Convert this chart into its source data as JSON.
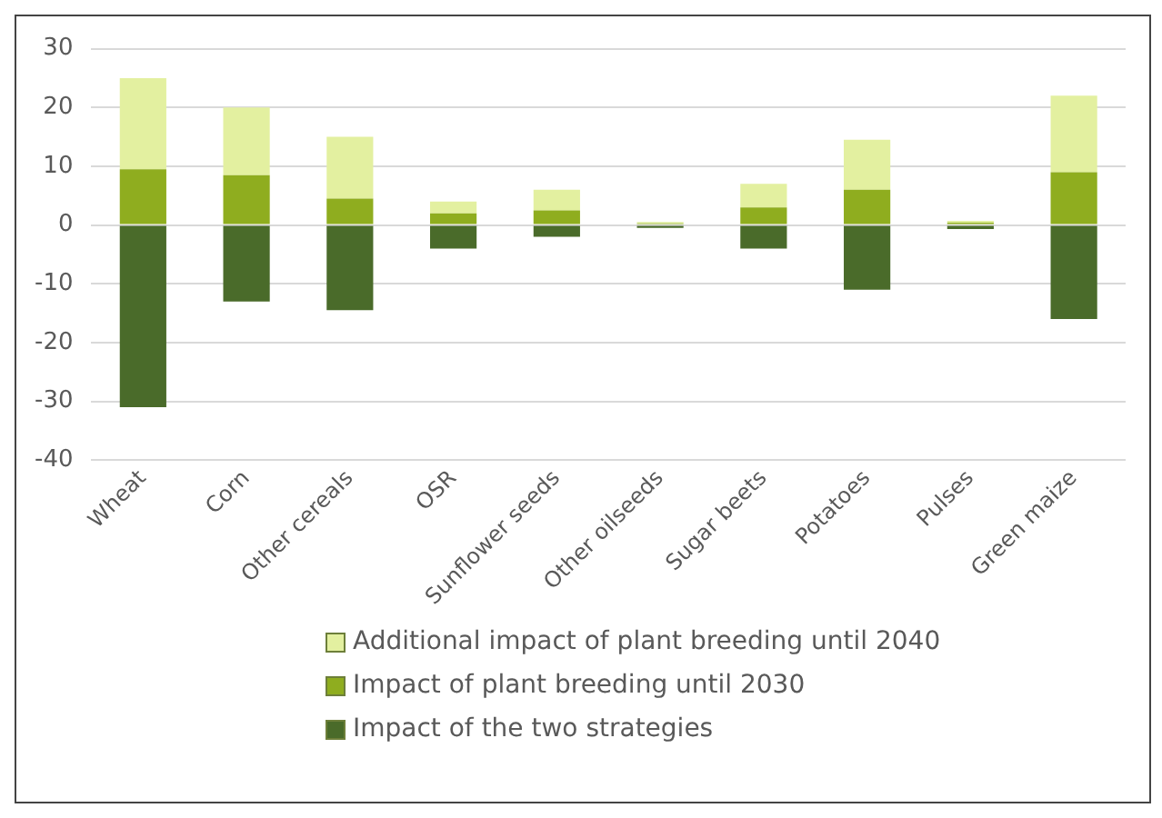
{
  "chart_data": {
    "type": "bar",
    "stacked": true,
    "categories": [
      "Wheat",
      "Corn",
      "Other cereals",
      "OSR",
      "Sunflower seeds",
      "Other oilseeds",
      "Sugar beets",
      "Potatoes",
      "Pulses",
      "Green maize"
    ],
    "series": [
      {
        "name": "Impact of the two strategies",
        "color": "#4a6b2a",
        "values": [
          -31,
          -13,
          -14.5,
          -4,
          -2,
          -0.5,
          -4,
          -11,
          -0.7,
          -16
        ]
      },
      {
        "name": "Impact of plant breeding until 2030",
        "color": "#8fad1f",
        "values": [
          9.5,
          8.5,
          4.5,
          2,
          2.5,
          0.3,
          3,
          6,
          0.4,
          9
        ]
      },
      {
        "name": "Additional impact of plant breeding until 2040",
        "color": "#e3f0a0",
        "values": [
          15.5,
          11.5,
          10.5,
          2,
          3.5,
          0.2,
          4,
          8.5,
          0.3,
          13
        ]
      }
    ],
    "ylim": [
      -40,
      30
    ],
    "yticks": [
      -40,
      -30,
      -20,
      -10,
      0,
      10,
      20,
      30
    ],
    "grid": "y",
    "legend": "bottom"
  }
}
